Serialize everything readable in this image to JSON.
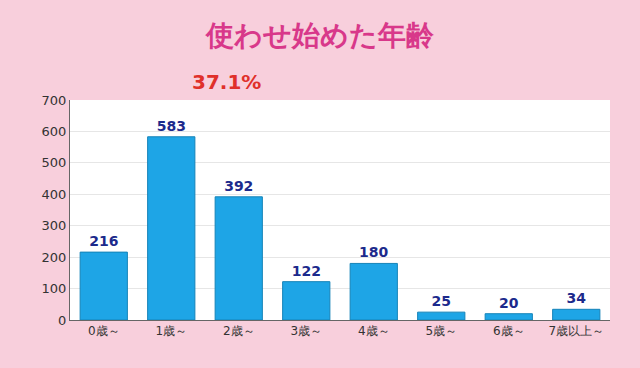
{
  "chart_data": {
    "type": "bar",
    "title": "使わせ始めた年齢",
    "categories": [
      "0歳～",
      "1歳～",
      "2歳～",
      "3歳～",
      "4歳～",
      "5歳～",
      "6歳～",
      "7歳以上～"
    ],
    "values": [
      216,
      583,
      392,
      122,
      180,
      25,
      20,
      34
    ],
    "color": "#1ea5e6",
    "ylim": [
      0,
      700
    ],
    "yticks": [
      0,
      100,
      200,
      300,
      400,
      500,
      600,
      700
    ],
    "grid": true,
    "data_labels": true,
    "annotations": [
      {
        "text": "37.1%",
        "x": "1歳～"
      }
    ]
  }
}
